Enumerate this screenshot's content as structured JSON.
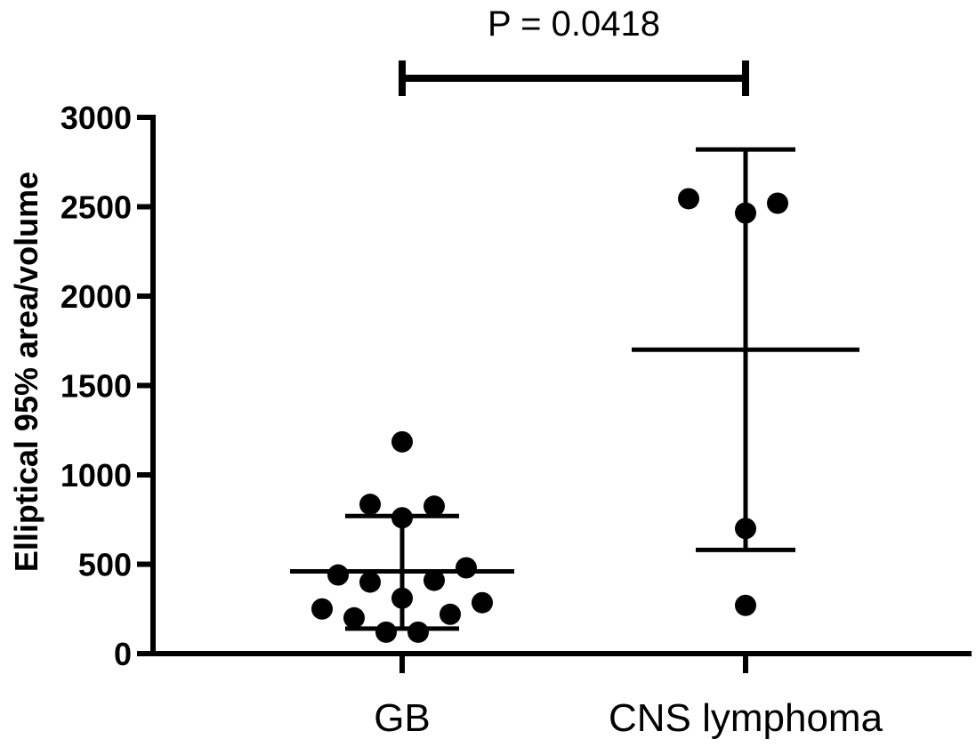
{
  "chart_data": {
    "type": "scatter",
    "title": "",
    "xlabel": "",
    "ylabel": "Elliptical 95% area/volume",
    "ylim": [
      0,
      3000
    ],
    "yticks": [
      0,
      500,
      1000,
      1500,
      2000,
      2500,
      3000
    ],
    "categories": [
      "GB",
      "CNS lymphoma"
    ],
    "series": [
      {
        "name": "GB",
        "points": [
          1185,
          835,
          825,
          760,
          480,
          440,
          410,
          400,
          310,
          285,
          250,
          220,
          200,
          120,
          120
        ],
        "mean": 460,
        "error_low": 140,
        "error_high": 770
      },
      {
        "name": "CNS lymphoma",
        "points": [
          2545,
          2520,
          2465,
          700,
          270
        ],
        "mean": 1700,
        "error_low": 580,
        "error_high": 2820
      }
    ],
    "annotation": {
      "text": "P = 0.0418",
      "between": [
        "GB",
        "CNS lymphoma"
      ]
    },
    "grid": false,
    "legend": "none"
  }
}
